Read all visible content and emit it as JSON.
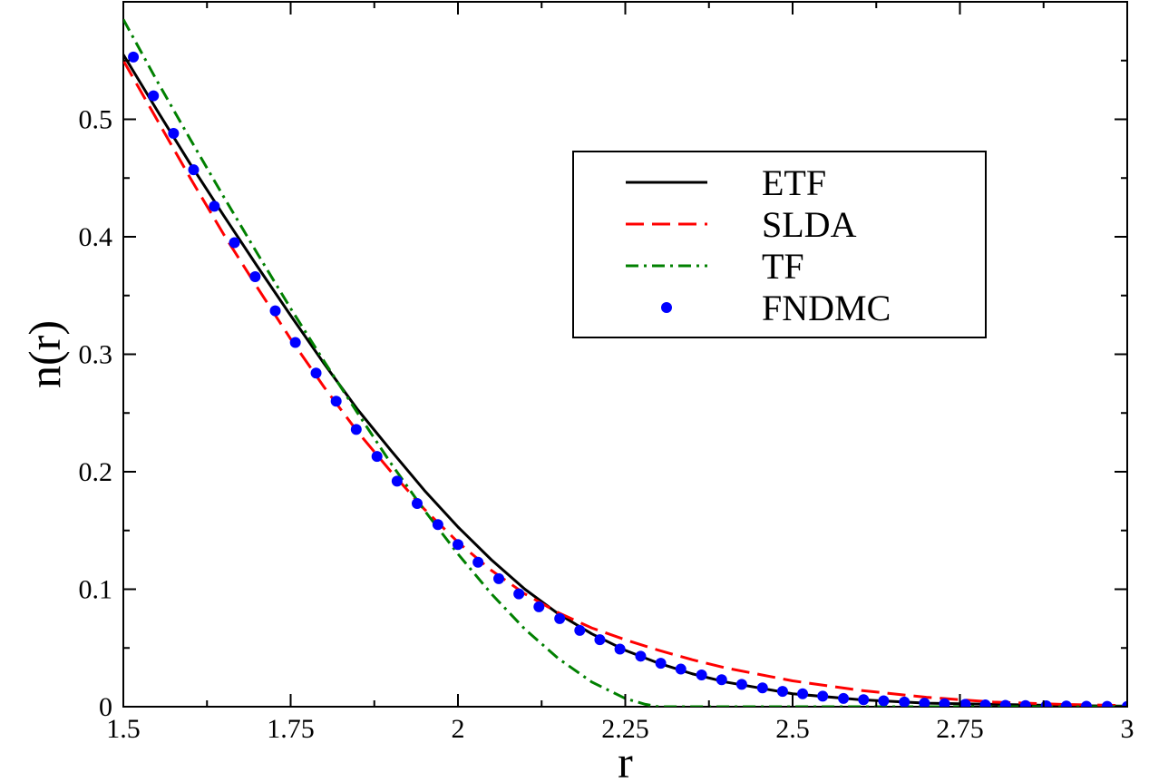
{
  "chart_data": {
    "type": "line",
    "xlabel": "r",
    "ylabel": "n(r)",
    "xlim": [
      1.5,
      3
    ],
    "ylim": [
      0,
      0.6
    ],
    "x_major_ticks": [
      1.5,
      1.75,
      2,
      2.25,
      2.5,
      2.75,
      3
    ],
    "x_tick_labels": [
      "1.5",
      "1.75",
      "2",
      "2.25",
      "2.5",
      "2.75",
      "3"
    ],
    "y_major_ticks": [
      0,
      0.1,
      0.2,
      0.3,
      0.4,
      0.5
    ],
    "y_tick_labels": [
      "0",
      "0.1",
      "0.2",
      "0.3",
      "0.4",
      "0.5"
    ],
    "grid": false,
    "legend_position": "upper-right",
    "series": [
      {
        "name": "ETF",
        "style": "solid",
        "color": "#000000",
        "x": [
          1.5,
          1.55,
          1.6,
          1.65,
          1.7,
          1.75,
          1.8,
          1.85,
          1.9,
          1.95,
          2.0,
          2.05,
          2.1,
          2.15,
          2.2,
          2.25,
          2.3,
          2.35,
          2.4,
          2.5,
          2.6,
          2.7,
          2.8,
          2.9,
          3.0
        ],
        "y": [
          0.555,
          0.508,
          0.462,
          0.418,
          0.375,
          0.333,
          0.292,
          0.253,
          0.218,
          0.184,
          0.153,
          0.125,
          0.1,
          0.079,
          0.062,
          0.048,
          0.037,
          0.028,
          0.021,
          0.011,
          0.006,
          0.003,
          0.002,
          0.001,
          0.0005
        ]
      },
      {
        "name": "SLDA",
        "style": "dashed",
        "color": "#ff0000",
        "x": [
          1.5,
          1.55,
          1.6,
          1.65,
          1.7,
          1.75,
          1.8,
          1.85,
          1.9,
          1.95,
          2.0,
          2.05,
          2.1,
          2.15,
          2.2,
          2.25,
          2.3,
          2.35,
          2.4,
          2.5,
          2.6,
          2.7,
          2.8,
          2.9,
          3.0
        ],
        "y": [
          0.55,
          0.5,
          0.45,
          0.402,
          0.357,
          0.313,
          0.272,
          0.234,
          0.2,
          0.168,
          0.14,
          0.116,
          0.096,
          0.08,
          0.067,
          0.057,
          0.048,
          0.04,
          0.033,
          0.022,
          0.014,
          0.008,
          0.004,
          0.002,
          0.001
        ]
      },
      {
        "name": "TF",
        "style": "dash-dot",
        "color": "#008000",
        "x": [
          1.5,
          1.55,
          1.6,
          1.65,
          1.7,
          1.75,
          1.8,
          1.85,
          1.9,
          1.95,
          2.0,
          2.05,
          2.1,
          2.15,
          2.2,
          2.25,
          2.28,
          2.3,
          2.35,
          2.4,
          2.5,
          2.6,
          2.7,
          2.8,
          2.9,
          3.0
        ],
        "y": [
          0.585,
          0.533,
          0.483,
          0.434,
          0.386,
          0.339,
          0.294,
          0.25,
          0.207,
          0.167,
          0.13,
          0.096,
          0.066,
          0.041,
          0.021,
          0.007,
          0.002,
          0.0,
          0.0,
          0.0,
          0.0,
          0.0,
          0.0,
          0.0,
          0.0,
          0.0
        ]
      },
      {
        "name": "FNDMC",
        "style": "markers",
        "color": "#0000ff",
        "x": [
          1.515,
          1.545,
          1.575,
          1.605,
          1.636,
          1.666,
          1.697,
          1.727,
          1.757,
          1.788,
          1.818,
          1.848,
          1.879,
          1.909,
          1.939,
          1.97,
          2.0,
          2.03,
          2.061,
          2.091,
          2.121,
          2.152,
          2.182,
          2.212,
          2.242,
          2.273,
          2.303,
          2.333,
          2.364,
          2.394,
          2.424,
          2.455,
          2.485,
          2.515,
          2.545,
          2.576,
          2.606,
          2.636,
          2.667,
          2.697,
          2.727,
          2.758,
          2.788,
          2.818,
          2.848,
          2.879,
          2.909,
          2.939,
          2.97,
          3.0
        ],
        "y": [
          0.553,
          0.52,
          0.488,
          0.457,
          0.426,
          0.395,
          0.366,
          0.337,
          0.31,
          0.284,
          0.26,
          0.236,
          0.213,
          0.192,
          0.173,
          0.155,
          0.138,
          0.123,
          0.109,
          0.096,
          0.085,
          0.075,
          0.065,
          0.057,
          0.049,
          0.043,
          0.037,
          0.032,
          0.027,
          0.023,
          0.019,
          0.016,
          0.013,
          0.011,
          0.009,
          0.007,
          0.006,
          0.005,
          0.004,
          0.003,
          0.0025,
          0.002,
          0.0015,
          0.0012,
          0.001,
          0.0008,
          0.0006,
          0.0004,
          0.0003,
          0.0002
        ]
      }
    ]
  }
}
